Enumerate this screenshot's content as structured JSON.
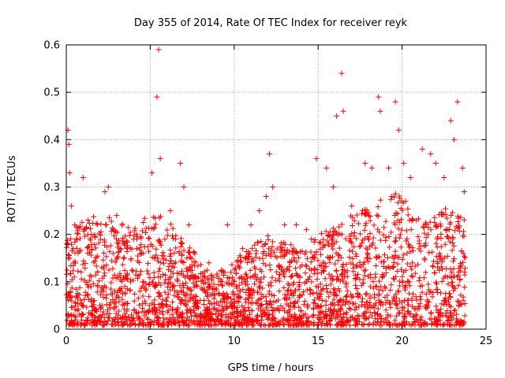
{
  "chart_data": {
    "type": "scatter",
    "title": "Day 355 of 2014, Rate Of TEC Index for receiver reyk",
    "xlabel": "GPS time / hours",
    "ylabel": "ROTI / TECUs",
    "xlim": [
      0,
      25
    ],
    "ylim": [
      0,
      0.6
    ],
    "xticks": [
      0,
      5,
      10,
      15,
      20,
      25
    ],
    "xtick_labels": [
      "0",
      "5",
      "10",
      "15",
      "20",
      "25"
    ],
    "yticks": [
      0,
      0.1,
      0.2,
      0.3,
      0.4,
      0.5,
      0.6
    ],
    "ytick_labels": [
      "0",
      "0.1",
      "0.2",
      "0.3",
      "0.4",
      "0.5",
      "0.6"
    ],
    "grid": true,
    "marker": "plus",
    "series_color": "#ff0000",
    "series": [
      {
        "name": "ROTI",
        "sampled_points": [
          [
            0.1,
            0.42
          ],
          [
            0.15,
            0.39
          ],
          [
            0.2,
            0.33
          ],
          [
            0.3,
            0.26
          ],
          [
            0.5,
            0.22
          ],
          [
            1.0,
            0.32
          ],
          [
            1.5,
            0.2
          ],
          [
            2.3,
            0.29
          ],
          [
            2.5,
            0.3
          ],
          [
            3.0,
            0.24
          ],
          [
            3.5,
            0.18
          ],
          [
            4.2,
            0.19
          ],
          [
            5.1,
            0.33
          ],
          [
            5.4,
            0.49
          ],
          [
            5.5,
            0.59
          ],
          [
            5.6,
            0.36
          ],
          [
            6.2,
            0.25
          ],
          [
            6.8,
            0.35
          ],
          [
            7.0,
            0.3
          ],
          [
            7.3,
            0.22
          ],
          [
            8.5,
            0.14
          ],
          [
            9.6,
            0.22
          ],
          [
            10.5,
            0.17
          ],
          [
            11.0,
            0.22
          ],
          [
            11.5,
            0.25
          ],
          [
            11.9,
            0.28
          ],
          [
            12.1,
            0.37
          ],
          [
            12.3,
            0.3
          ],
          [
            13.0,
            0.22
          ],
          [
            13.7,
            0.22
          ],
          [
            14.3,
            0.21
          ],
          [
            14.6,
            0.19
          ],
          [
            14.9,
            0.36
          ],
          [
            15.5,
            0.34
          ],
          [
            15.9,
            0.3
          ],
          [
            16.1,
            0.45
          ],
          [
            16.4,
            0.54
          ],
          [
            16.5,
            0.46
          ],
          [
            17.0,
            0.26
          ],
          [
            17.8,
            0.35
          ],
          [
            18.2,
            0.34
          ],
          [
            18.6,
            0.49
          ],
          [
            18.7,
            0.46
          ],
          [
            19.2,
            0.34
          ],
          [
            19.6,
            0.48
          ],
          [
            19.8,
            0.42
          ],
          [
            20.1,
            0.35
          ],
          [
            20.5,
            0.32
          ],
          [
            21.2,
            0.38
          ],
          [
            21.7,
            0.37
          ],
          [
            22.0,
            0.35
          ],
          [
            22.5,
            0.32
          ],
          [
            22.9,
            0.44
          ],
          [
            23.1,
            0.4
          ],
          [
            23.3,
            0.48
          ],
          [
            23.6,
            0.34
          ],
          [
            23.7,
            0.29
          ]
        ]
      }
    ]
  }
}
